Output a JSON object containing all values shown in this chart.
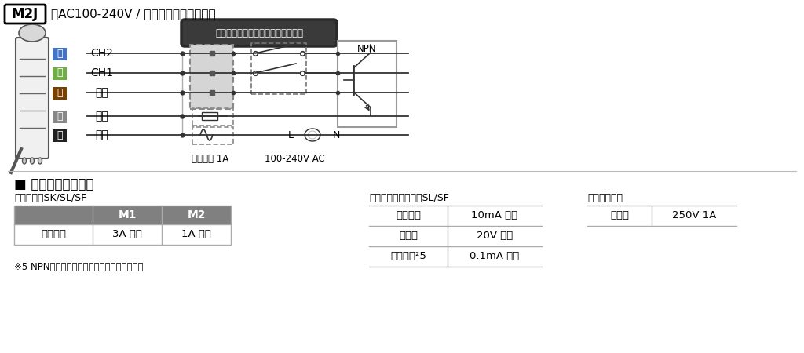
{
  "title_box": "M2J",
  "title_text": "（AC100-240V / キャブタイヤコード）",
  "warning_text": "電源と直接接続しないでください！",
  "wire_labels": [
    "青",
    "緯",
    "茶",
    "灯",
    "黒"
  ],
  "wire_colors": [
    "#4472C4",
    "#70AD47",
    "#7B3F00",
    "#888888",
    "#222222"
  ],
  "wire_texts": [
    "CH2",
    "CH1",
    "共通",
    "電源",
    "電源"
  ],
  "fuse_label": "ヒューズ 1A",
  "ac_label": "100-240V AC",
  "npn_label": "NPN",
  "section_title": "■ 推奨外部接点容量",
  "table1_header": "【電源線】SK/SL/SF",
  "table1_col1": "M1",
  "table1_col2": "M2",
  "table1_row1_label": "電流容量",
  "table1_row1_val1": "3A 以上",
  "table1_row1_val2": "1A 以上",
  "table2_header": "【ブザー・信号線】SL/SF",
  "table2_row1_label": "電流容量",
  "table2_row1_val": "10mA 以上",
  "table2_row2_label": "電　圧",
  "table2_row2_val": "20V 以上",
  "table2_row3_label": "漏れ電流²5",
  "table2_row3_val": "0.1mA 以下",
  "table3_header": "【ヒューズ】",
  "table3_row1_label": "定　格",
  "table3_row1_val": "250V 1A",
  "footnote": "※5 NPNオープンコレクタトランジスタ使用時",
  "bg_color": "#ffffff",
  "table_header_color": "#808080",
  "line_color": "#333333",
  "border_color": "#555555"
}
